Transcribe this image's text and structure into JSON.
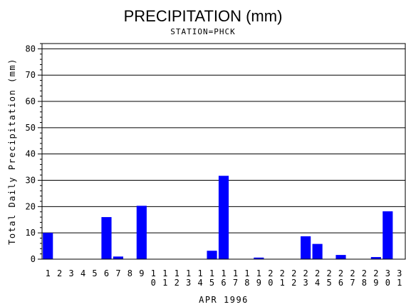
{
  "chart_data": {
    "type": "bar",
    "title": "PRECIPITATION (mm)",
    "subtitle": "STATION=PHCK",
    "xlabel": "APR 1996",
    "ylabel": "Total Daily Precipitation (mm)",
    "ylim": [
      0,
      82
    ],
    "yticks": [
      0,
      10,
      20,
      30,
      40,
      50,
      60,
      70,
      80
    ],
    "grid": true,
    "bar_color": "#0000ff",
    "categories": [
      "1",
      "2",
      "3",
      "4",
      "5",
      "6",
      "7",
      "8",
      "9",
      "10",
      "11",
      "12",
      "13",
      "14",
      "15",
      "16",
      "17",
      "18",
      "19",
      "20",
      "21",
      "22",
      "23",
      "24",
      "25",
      "26",
      "27",
      "28",
      "29",
      "30",
      "31"
    ],
    "values": [
      10,
      0,
      0,
      0,
      0,
      16,
      1,
      0,
      20.3,
      0,
      0,
      0,
      0,
      0,
      3.2,
      31.7,
      0,
      0,
      0.6,
      0,
      0,
      0,
      8.7,
      5.8,
      0,
      1.6,
      0,
      0,
      0.8,
      18.2,
      0
    ]
  }
}
